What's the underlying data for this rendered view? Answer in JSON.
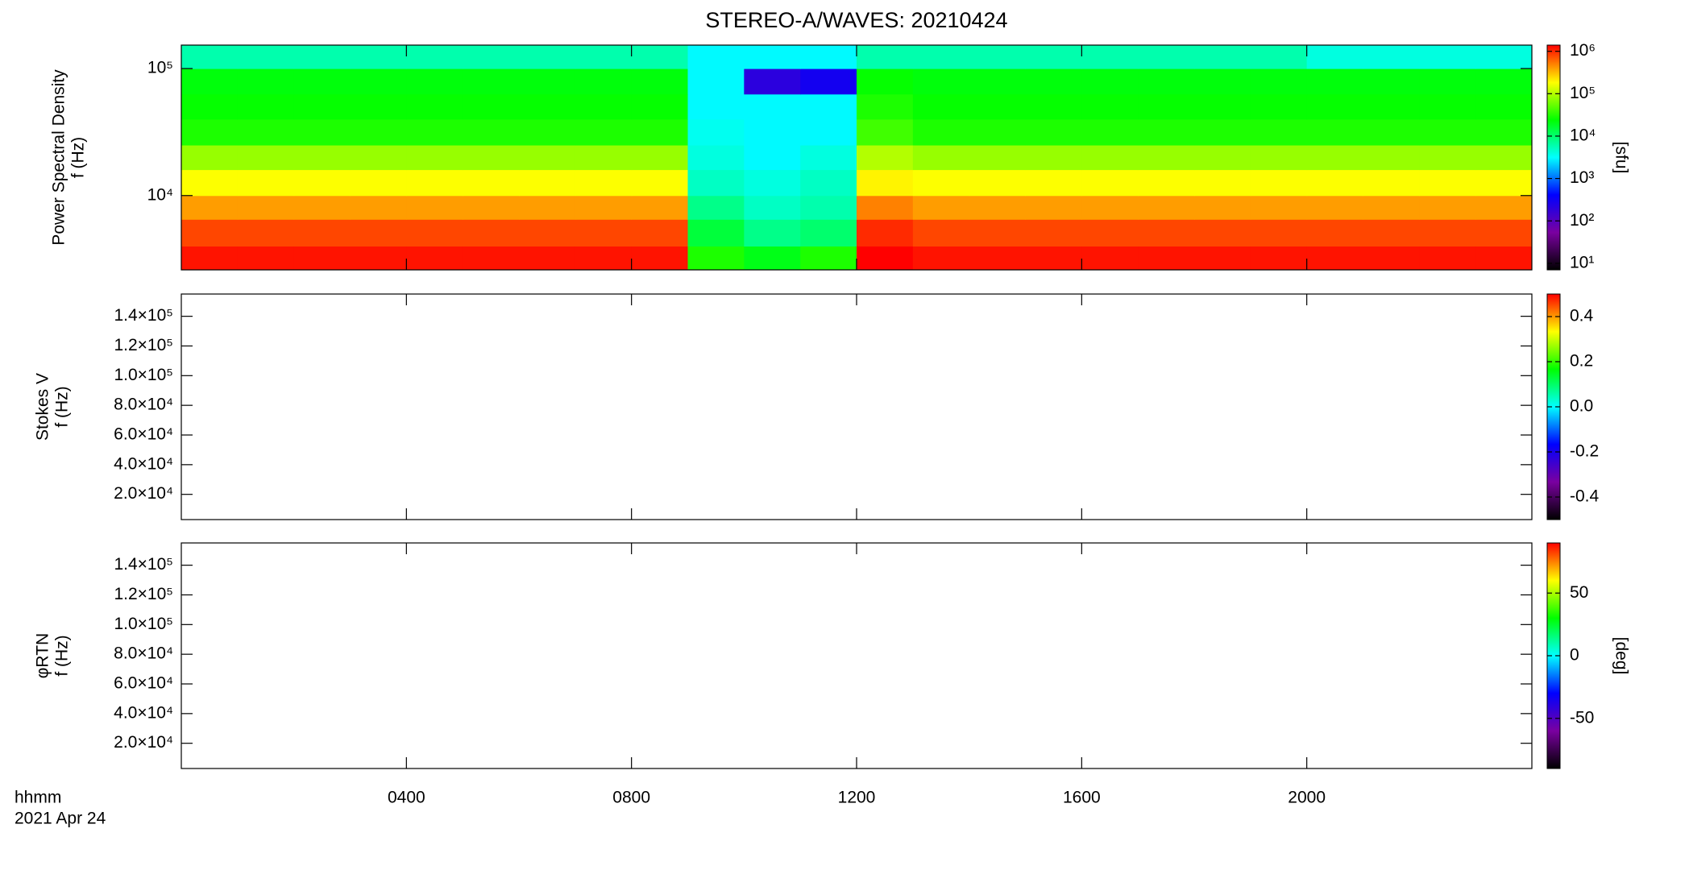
{
  "chart_data": [
    {
      "type": "heatmap",
      "title": "STEREO-A/WAVES: 20210424",
      "ylabel": [
        "Power Spectral Density",
        "f (Hz)"
      ],
      "xlim": [
        0,
        24
      ],
      "xticks": [
        4,
        8,
        12,
        16,
        20
      ],
      "ylog": true,
      "ylim": [
        2600,
        153000
      ],
      "yticks": [
        {
          "value": 10000,
          "label": "10⁴"
        },
        {
          "value": 100000,
          "label": "10⁵"
        }
      ],
      "xbins": [
        0,
        1,
        2,
        3,
        4,
        5,
        6,
        7,
        8,
        9,
        10,
        11,
        12,
        13,
        14,
        15,
        16,
        17,
        18,
        19,
        20,
        21,
        22,
        23,
        24
      ],
      "ybins": [
        2600,
        4000,
        6500,
        10000,
        16000,
        25000,
        40000,
        63000,
        100000,
        153000
      ],
      "values": [
        [
          1200000,
          1200000,
          1200000,
          1200000,
          1200000,
          1200000,
          1200000,
          1200000,
          1200000,
          30000,
          20000,
          30000,
          1400000,
          1200000,
          1200000,
          1200000,
          1200000,
          1200000,
          1200000,
          1200000,
          1200000,
          1200000,
          1200000,
          1200000
        ],
        [
          800000,
          800000,
          800000,
          800000,
          800000,
          800000,
          800000,
          800000,
          800000,
          15000,
          8000,
          10000,
          1000000,
          800000,
          800000,
          800000,
          800000,
          800000,
          800000,
          800000,
          800000,
          800000,
          800000,
          800000
        ],
        [
          400000,
          400000,
          400000,
          400000,
          400000,
          400000,
          400000,
          400000,
          400000,
          8000,
          5000,
          6000,
          500000,
          400000,
          400000,
          400000,
          400000,
          400000,
          400000,
          400000,
          400000,
          400000,
          400000,
          400000
        ],
        [
          180000,
          180000,
          180000,
          180000,
          180000,
          180000,
          180000,
          180000,
          180000,
          5000,
          4000,
          5000,
          200000,
          180000,
          180000,
          180000,
          180000,
          180000,
          180000,
          180000,
          180000,
          180000,
          180000,
          180000
        ],
        [
          80000,
          80000,
          80000,
          80000,
          80000,
          80000,
          80000,
          80000,
          80000,
          4000,
          3000,
          4000,
          100000,
          80000,
          80000,
          80000,
          80000,
          80000,
          80000,
          80000,
          80000,
          80000,
          80000,
          80000
        ],
        [
          30000,
          30000,
          30000,
          30000,
          30000,
          30000,
          30000,
          30000,
          30000,
          3500,
          3000,
          3000,
          40000,
          30000,
          30000,
          30000,
          30000,
          30000,
          30000,
          30000,
          30000,
          30000,
          30000,
          30000
        ],
        [
          25000,
          25000,
          25000,
          25000,
          25000,
          25000,
          25000,
          25000,
          25000,
          3000,
          3000,
          3000,
          30000,
          25000,
          25000,
          25000,
          25000,
          25000,
          25000,
          25000,
          25000,
          25000,
          25000,
          25000
        ],
        [
          22000,
          22000,
          22000,
          22000,
          22000,
          22000,
          22000,
          22000,
          22000,
          3000,
          200,
          300,
          25000,
          22000,
          22000,
          22000,
          22000,
          22000,
          22000,
          22000,
          22000,
          22000,
          22000,
          22000
        ],
        [
          6000,
          6000,
          6000,
          6000,
          6000,
          6000,
          6000,
          6000,
          6000,
          3000,
          3000,
          3000,
          6000,
          6000,
          6000,
          6000,
          6000,
          6000,
          6000,
          6000,
          4000,
          4000,
          4000,
          4000
        ]
      ],
      "clog": true,
      "clim": [
        7,
        1400000
      ],
      "cticks": [
        {
          "value": 1000000,
          "label": "10⁶"
        },
        {
          "value": 100000,
          "label": "10⁵"
        },
        {
          "value": 10000,
          "label": "10⁴"
        },
        {
          "value": 1000,
          "label": "10³"
        },
        {
          "value": 100,
          "label": "10²"
        },
        {
          "value": 10,
          "label": "10¹"
        }
      ],
      "clabel": "[sfu]",
      "colormap": [
        "#000000",
        "#7a00a0",
        "#0000ff",
        "#00ffff",
        "#00ff00",
        "#ffff00",
        "#ff0000"
      ]
    },
    {
      "type": "heatmap",
      "ylabel": [
        "Stokes V",
        "f (Hz)"
      ],
      "xlim": [
        0,
        24
      ],
      "xticks": [
        4,
        8,
        12,
        16,
        20
      ],
      "ylim": [
        3000,
        155000
      ],
      "yticks": [
        {
          "value": 140000,
          "label": "1.4×10⁵"
        },
        {
          "value": 120000,
          "label": "1.2×10⁵"
        },
        {
          "value": 100000,
          "label": "1.0×10⁵"
        },
        {
          "value": 80000,
          "label": "8.0×10⁴"
        },
        {
          "value": 60000,
          "label": "6.0×10⁴"
        },
        {
          "value": 40000,
          "label": "4.0×10⁴"
        },
        {
          "value": 20000,
          "label": "2.0×10⁴"
        }
      ],
      "clim": [
        -0.5,
        0.5
      ],
      "cticks": [
        0.4,
        0.2,
        {
          "value": 0,
          "label": "0.0"
        },
        -0.2,
        -0.4
      ],
      "colormap": [
        "#000000",
        "#7a00a0",
        "#0000ff",
        "#00ffff",
        "#00ff00",
        "#ffff00",
        "#ff0000"
      ]
    },
    {
      "type": "heatmap",
      "ylabel": [
        "φRTN",
        "f (Hz)"
      ],
      "xlim": [
        0,
        24
      ],
      "xticks": [
        {
          "value": 4,
          "label": "0400"
        },
        {
          "value": 8,
          "label": "0800"
        },
        {
          "value": 12,
          "label": "1200"
        },
        {
          "value": 16,
          "label": "1600"
        },
        {
          "value": 20,
          "label": "2000"
        }
      ],
      "xlabel": [
        "hhmm",
        "2021 Apr 24"
      ],
      "ylim": [
        3000,
        155000
      ],
      "yticks": [
        {
          "value": 140000,
          "label": "1.4×10⁵"
        },
        {
          "value": 120000,
          "label": "1.2×10⁵"
        },
        {
          "value": 100000,
          "label": "1.0×10⁵"
        },
        {
          "value": 80000,
          "label": "8.0×10⁴"
        },
        {
          "value": 60000,
          "label": "6.0×10⁴"
        },
        {
          "value": 40000,
          "label": "4.0×10⁴"
        },
        {
          "value": 20000,
          "label": "2.0×10⁴"
        }
      ],
      "clim": [
        -90,
        90
      ],
      "cticks": [
        50,
        0,
        -50
      ],
      "clabel": "[deg]",
      "colormap": [
        "#000000",
        "#7a00a0",
        "#0000ff",
        "#00ffff",
        "#00ff00",
        "#ffff00",
        "#ff0000"
      ]
    }
  ]
}
